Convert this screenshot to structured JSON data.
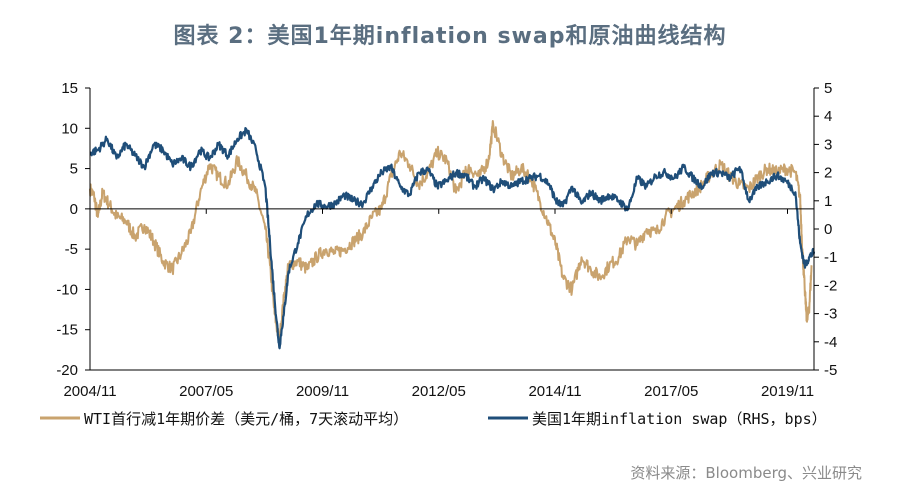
{
  "title": "图表 2：美国1年期inflation swap和原油曲线结构",
  "source": "资料来源：Bloomberg、兴业研究",
  "colors": {
    "wti": "#c9a36e",
    "swap": "#1f4e79",
    "axis": "#000000"
  },
  "chart_data": {
    "type": "line",
    "x_tick_labels": [
      "2004/11",
      "2007/05",
      "2009/11",
      "2012/05",
      "2014/11",
      "2017/05",
      "2019/11"
    ],
    "x_ticks": [
      2004.83,
      2007.33,
      2009.83,
      2012.33,
      2014.83,
      2017.33,
      2019.83
    ],
    "xlim": [
      2004.83,
      2020.4
    ],
    "y_left": {
      "lim": [
        -20,
        15
      ],
      "ticks": [
        15,
        10,
        5,
        0,
        -5,
        -10,
        -15,
        -20
      ]
    },
    "y_right": {
      "lim": [
        -5,
        5
      ],
      "ticks": [
        5,
        4,
        3,
        2,
        1,
        0,
        -1,
        -2,
        -3,
        -4,
        -5
      ]
    },
    "legend": [
      "WTI首行减1年期价差（美元/桶，7天滚动平均）",
      "美国1年期inflation swap（RHS，bps）"
    ],
    "series": [
      {
        "name": "WTI首行减1年期价差（美元/桶，7天滚动平均）",
        "axis": "left",
        "x": [
          2004.83,
          2004.92,
          2005.0,
          2005.1,
          2005.25,
          2005.4,
          2005.6,
          2005.8,
          2006.0,
          2006.2,
          2006.4,
          2006.6,
          2006.8,
          2007.0,
          2007.2,
          2007.4,
          2007.6,
          2007.8,
          2008.0,
          2008.2,
          2008.4,
          2008.6,
          2008.7,
          2008.8,
          2008.9,
          2009.0,
          2009.1,
          2009.3,
          2009.5,
          2009.7,
          2009.9,
          2010.1,
          2010.3,
          2010.5,
          2010.7,
          2010.9,
          2011.1,
          2011.3,
          2011.5,
          2011.7,
          2011.9,
          2012.1,
          2012.3,
          2012.5,
          2012.7,
          2012.9,
          2013.0,
          2013.2,
          2013.4,
          2013.5,
          2013.7,
          2013.9,
          2014.1,
          2014.3,
          2014.5,
          2014.7,
          2014.85,
          2015.0,
          2015.2,
          2015.4,
          2015.6,
          2015.8,
          2016.0,
          2016.2,
          2016.4,
          2016.6,
          2016.8,
          2017.0,
          2017.2,
          2017.4,
          2017.6,
          2017.8,
          2018.0,
          2018.2,
          2018.4,
          2018.6,
          2018.8,
          2019.0,
          2019.2,
          2019.4,
          2019.6,
          2019.8,
          2020.0,
          2020.1,
          2020.15,
          2020.2,
          2020.25,
          2020.3,
          2020.35
        ],
        "values": [
          2.5,
          1.5,
          -1.0,
          2.0,
          0.5,
          -1.0,
          -1.5,
          -3.5,
          -2.0,
          -4.0,
          -6.5,
          -7.5,
          -5.5,
          -3.0,
          2.0,
          5.5,
          4.0,
          3.0,
          6.0,
          4.0,
          2.0,
          -2.5,
          -7.0,
          -13.0,
          -16.5,
          -11.0,
          -7.0,
          -6.5,
          -7.5,
          -6.0,
          -5.0,
          -5.5,
          -5.0,
          -4.0,
          -3.0,
          -1.0,
          0.0,
          4.0,
          7.0,
          5.5,
          3.0,
          4.5,
          7.0,
          6.0,
          2.0,
          4.5,
          5.0,
          4.0,
          6.0,
          10.5,
          6.5,
          4.0,
          5.0,
          4.0,
          1.0,
          -2.0,
          -4.5,
          -8.5,
          -10.0,
          -6.0,
          -7.5,
          -8.5,
          -7.0,
          -6.0,
          -3.5,
          -4.5,
          -2.5,
          -3.0,
          -1.0,
          0.0,
          1.0,
          2.0,
          3.0,
          4.5,
          5.5,
          4.0,
          3.0,
          2.5,
          4.0,
          5.0,
          4.5,
          5.0,
          4.5,
          1.5,
          -5.0,
          -10.0,
          -14.0,
          -12.0,
          -7.0
        ]
      },
      {
        "name": "美国1年期inflation swap（RHS，bps）",
        "axis": "right",
        "x": [
          2004.83,
          2005.0,
          2005.2,
          2005.4,
          2005.6,
          2005.8,
          2006.0,
          2006.2,
          2006.4,
          2006.6,
          2006.8,
          2007.0,
          2007.2,
          2007.4,
          2007.6,
          2007.8,
          2008.0,
          2008.2,
          2008.4,
          2008.6,
          2008.7,
          2008.8,
          2008.9,
          2009.0,
          2009.1,
          2009.3,
          2009.5,
          2009.7,
          2009.9,
          2010.1,
          2010.3,
          2010.5,
          2010.7,
          2010.9,
          2011.1,
          2011.3,
          2011.5,
          2011.7,
          2011.9,
          2012.1,
          2012.3,
          2012.5,
          2012.7,
          2012.9,
          2013.1,
          2013.3,
          2013.5,
          2013.7,
          2013.9,
          2014.1,
          2014.3,
          2014.5,
          2014.7,
          2014.85,
          2015.0,
          2015.2,
          2015.4,
          2015.6,
          2015.8,
          2016.0,
          2016.2,
          2016.4,
          2016.6,
          2016.8,
          2017.0,
          2017.2,
          2017.4,
          2017.6,
          2017.8,
          2018.0,
          2018.2,
          2018.4,
          2018.6,
          2018.8,
          2019.0,
          2019.2,
          2019.4,
          2019.6,
          2019.8,
          2020.0,
          2020.1,
          2020.2,
          2020.3,
          2020.4
        ],
        "values": [
          2.7,
          2.8,
          3.2,
          2.5,
          3.0,
          2.6,
          2.2,
          3.0,
          2.8,
          2.3,
          2.5,
          2.2,
          2.8,
          2.5,
          3.0,
          2.6,
          3.2,
          3.5,
          2.8,
          1.5,
          -0.5,
          -2.5,
          -4.2,
          -3.0,
          -1.5,
          -0.5,
          0.5,
          0.9,
          0.8,
          0.9,
          1.2,
          1.0,
          0.9,
          1.5,
          2.0,
          2.2,
          1.5,
          1.2,
          2.0,
          2.1,
          1.5,
          1.7,
          2.0,
          1.9,
          1.5,
          1.8,
          1.4,
          1.7,
          1.5,
          1.7,
          1.8,
          1.9,
          1.6,
          1.0,
          0.8,
          1.5,
          0.9,
          1.3,
          1.0,
          1.2,
          1.0,
          0.7,
          1.8,
          1.5,
          1.9,
          2.0,
          1.8,
          2.2,
          1.8,
          1.5,
          2.0,
          2.0,
          1.8,
          2.2,
          1.0,
          1.5,
          1.7,
          1.9,
          1.7,
          1.3,
          -0.5,
          -1.3,
          -1.0,
          -0.8
        ]
      }
    ]
  }
}
